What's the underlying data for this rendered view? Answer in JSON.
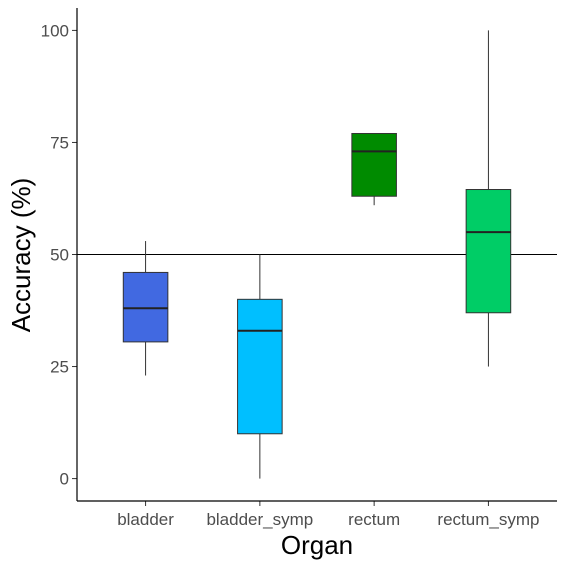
{
  "chart_data": {
    "type": "box",
    "xlabel": "Organ",
    "ylabel": "Accuracy (%)",
    "ylim": [
      -5,
      105
    ],
    "yticks": [
      0,
      25,
      50,
      75,
      100
    ],
    "categories": [
      "bladder",
      "bladder_symp",
      "rectum",
      "rectum_symp"
    ],
    "boxes": [
      {
        "category": "bladder",
        "min": 23,
        "q1": 30.5,
        "median": 38,
        "q3": 46,
        "max": 53,
        "color": "#4169E1"
      },
      {
        "category": "bladder_symp",
        "min": 0,
        "q1": 10,
        "median": 33,
        "q3": 40,
        "max": 50,
        "color": "#00BFFF"
      },
      {
        "category": "rectum",
        "min": 61,
        "q1": 63,
        "median": 73,
        "q3": 77,
        "max": 77,
        "color": "#008B00"
      },
      {
        "category": "rectum_symp",
        "min": 25,
        "q1": 37,
        "median": 55,
        "q3": 64.5,
        "max": 100,
        "color": "#00CD66"
      }
    ],
    "reference_line": 50,
    "grid": false,
    "legend": "none"
  }
}
